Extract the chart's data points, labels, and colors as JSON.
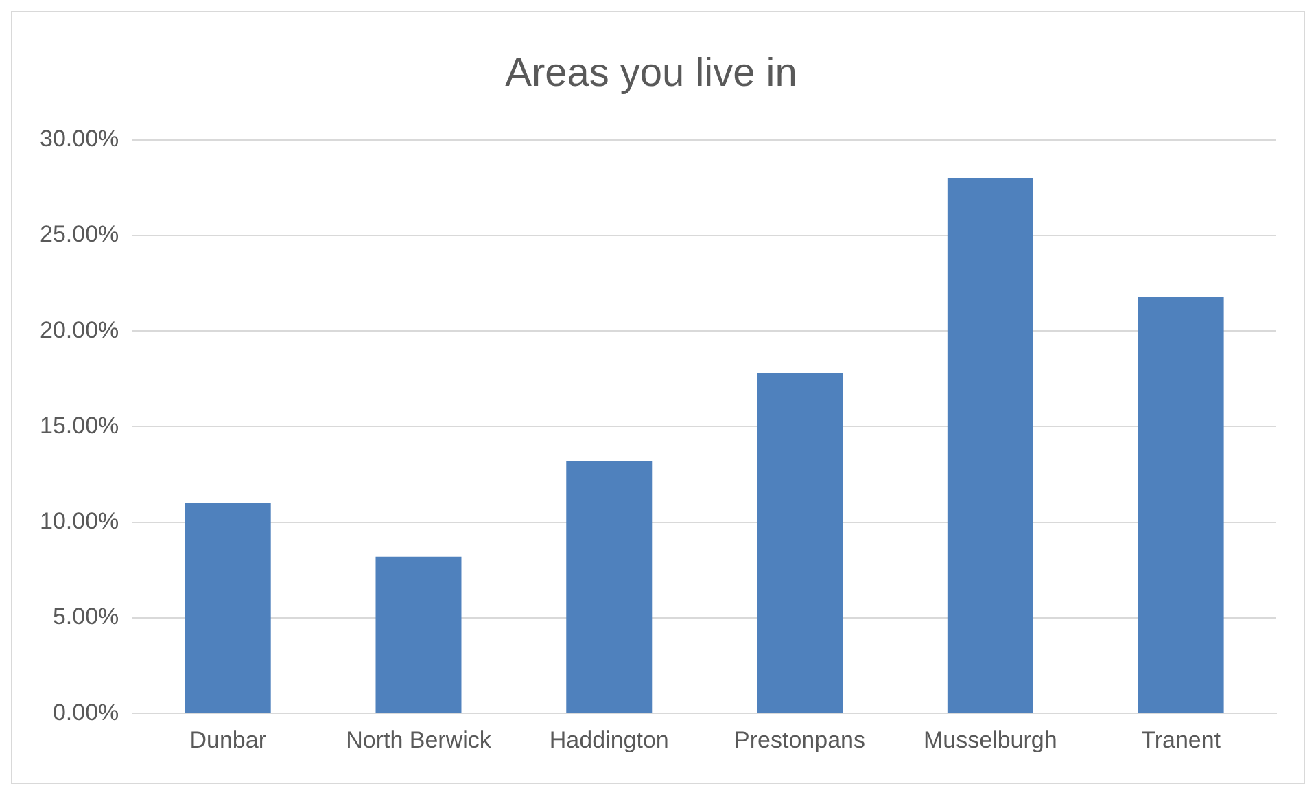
{
  "chart_data": {
    "type": "bar",
    "title": "Areas you live in",
    "categories": [
      "Dunbar",
      "North Berwick",
      "Haddington",
      "Prestonpans",
      "Musselburgh",
      "Tranent"
    ],
    "values": [
      11.0,
      8.2,
      13.2,
      17.8,
      28.0,
      21.8
    ],
    "color": "#4f81bd",
    "ylim": [
      0,
      30
    ],
    "yticks": [
      {
        "value": 0,
        "label": "0.00%"
      },
      {
        "value": 5,
        "label": "5.00%"
      },
      {
        "value": 10,
        "label": "10.00%"
      },
      {
        "value": 15,
        "label": "15.00%"
      },
      {
        "value": 20,
        "label": "20.00%"
      },
      {
        "value": 25,
        "label": "25.00%"
      },
      {
        "value": 30,
        "label": "30.00%"
      }
    ],
    "grid": "y",
    "legend": false
  }
}
